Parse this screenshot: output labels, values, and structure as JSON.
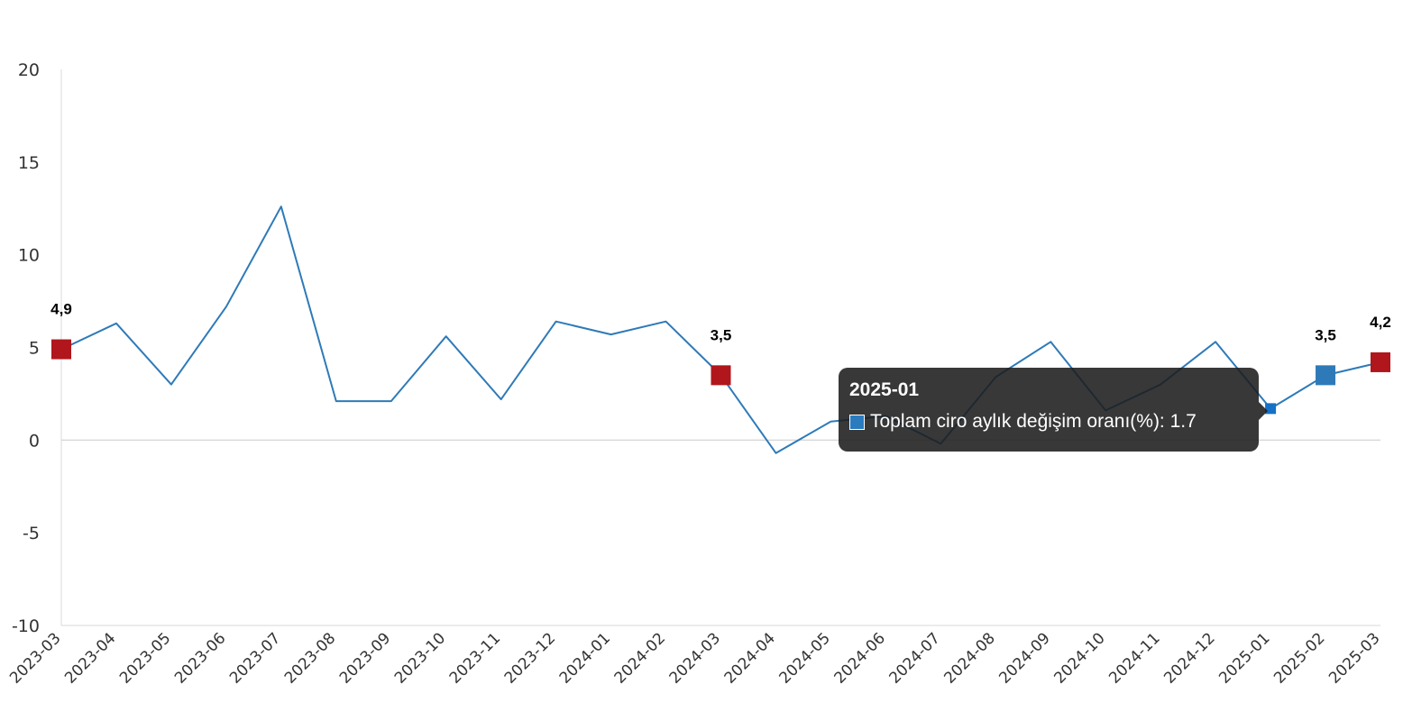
{
  "chart_data": {
    "type": "line",
    "title": "",
    "xlabel": "",
    "ylabel": "",
    "ylim": [
      -10,
      20
    ],
    "yticks": [
      "20",
      "15",
      "10",
      "5",
      "0",
      "-5",
      "-10"
    ],
    "ytick_values": [
      20,
      15,
      10,
      5,
      0,
      -5,
      -10
    ],
    "categories": [
      "2023-03",
      "2023-04",
      "2023-05",
      "2023-06",
      "2023-07",
      "2023-08",
      "2023-09",
      "2023-10",
      "2023-11",
      "2023-12",
      "2024-01",
      "2024-02",
      "2024-03",
      "2024-04",
      "2024-05",
      "2024-06",
      "2024-07",
      "2024-08",
      "2024-09",
      "2024-10",
      "2024-11",
      "2024-12",
      "2025-01",
      "2025-02",
      "2025-03"
    ],
    "series": [
      {
        "name": "Toplam ciro aylık değişim oranı(%)",
        "color": "#2e7ab8",
        "values": [
          4.9,
          6.3,
          3.0,
          7.2,
          12.6,
          2.1,
          2.1,
          5.6,
          2.2,
          6.4,
          5.7,
          6.4,
          3.5,
          -0.7,
          1.0,
          1.3,
          -0.2,
          3.4,
          5.3,
          1.6,
          3.0,
          5.3,
          1.7,
          3.5,
          4.2
        ]
      }
    ],
    "highlighted_points": [
      {
        "index": 0,
        "label": "4,9",
        "color": "#b0161b"
      },
      {
        "index": 12,
        "label": "3,5",
        "color": "#b0161b"
      },
      {
        "index": 23,
        "label": "3,5",
        "color": "#2e7ab8"
      },
      {
        "index": 24,
        "label": "4,2",
        "color": "#b0161b"
      }
    ],
    "hover_index": 22,
    "grid": false,
    "legend": "none"
  },
  "tooltip": {
    "title": "2025-01",
    "row": "Toplam ciro aylık değişim oranı(%): 1.7",
    "swatch_color": "#2b7bbf"
  }
}
